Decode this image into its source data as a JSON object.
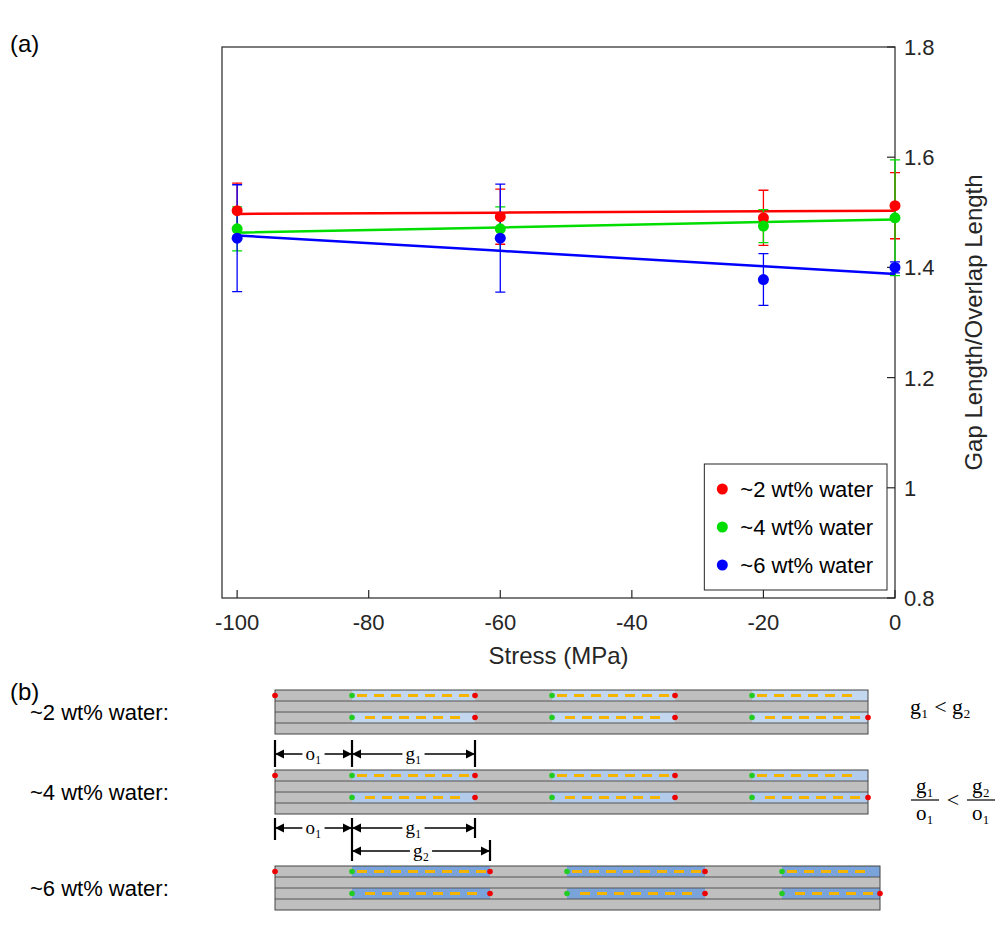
{
  "chart_data": {
    "type": "scatter",
    "annotations": [
      "(a)"
    ],
    "x_label": "Stress (MPa)",
    "y_label": "Gap Length/Overlap Length",
    "x": [
      -100,
      -60,
      -20,
      0
    ],
    "xlim": [
      -102.3,
      0
    ],
    "xticks": [
      -100,
      -80,
      -60,
      -40,
      -20,
      0
    ],
    "ylim": [
      0.8,
      1.8
    ],
    "yticks": [
      0.8,
      1,
      1.2,
      1.4,
      1.6,
      1.8
    ],
    "grid": false,
    "legend": "lower right",
    "series": [
      {
        "name": "~2 wt% water",
        "color": "#ff0000",
        "marker": "circle",
        "values": [
          1.503,
          1.492,
          1.49,
          1.512
        ],
        "errors": [
          0.05,
          0.05,
          0.05,
          0.06
        ],
        "fit": [
          1.497,
          1.4994,
          1.5018,
          1.503
        ]
      },
      {
        "name": "~4 wt% water",
        "color": "#00dd00",
        "marker": "circle",
        "values": [
          1.47,
          1.47,
          1.475,
          1.49
        ],
        "errors": [
          0.04,
          0.04,
          0.03,
          0.105
        ],
        "fit": [
          1.463,
          1.4726,
          1.4822,
          1.487
        ]
      },
      {
        "name": "~6 wt% water",
        "color": "#0000ff",
        "marker": "circle",
        "values": [
          1.453,
          1.453,
          1.378,
          1.4
        ],
        "errors": [
          0.097,
          0.098,
          0.047,
          0.01
        ],
        "fit": [
          1.458,
          1.43,
          1.402,
          1.388
        ]
      }
    ]
  },
  "diagram": {
    "label": "(b)",
    "rows": [
      "~2 wt% water:",
      "~4 wt% water:",
      "~6 wt% water:"
    ],
    "dimensions": [
      [
        "o₁",
        "g₁"
      ],
      [
        "o₁",
        "g₁",
        "g₂"
      ]
    ],
    "relations": [
      {
        "left": "g₁",
        "op": "<",
        "right": "g₂"
      },
      {
        "left": [
          "g₁",
          "o₁"
        ],
        "op": "<",
        "right": [
          "g₂",
          "o₁"
        ]
      }
    ]
  }
}
